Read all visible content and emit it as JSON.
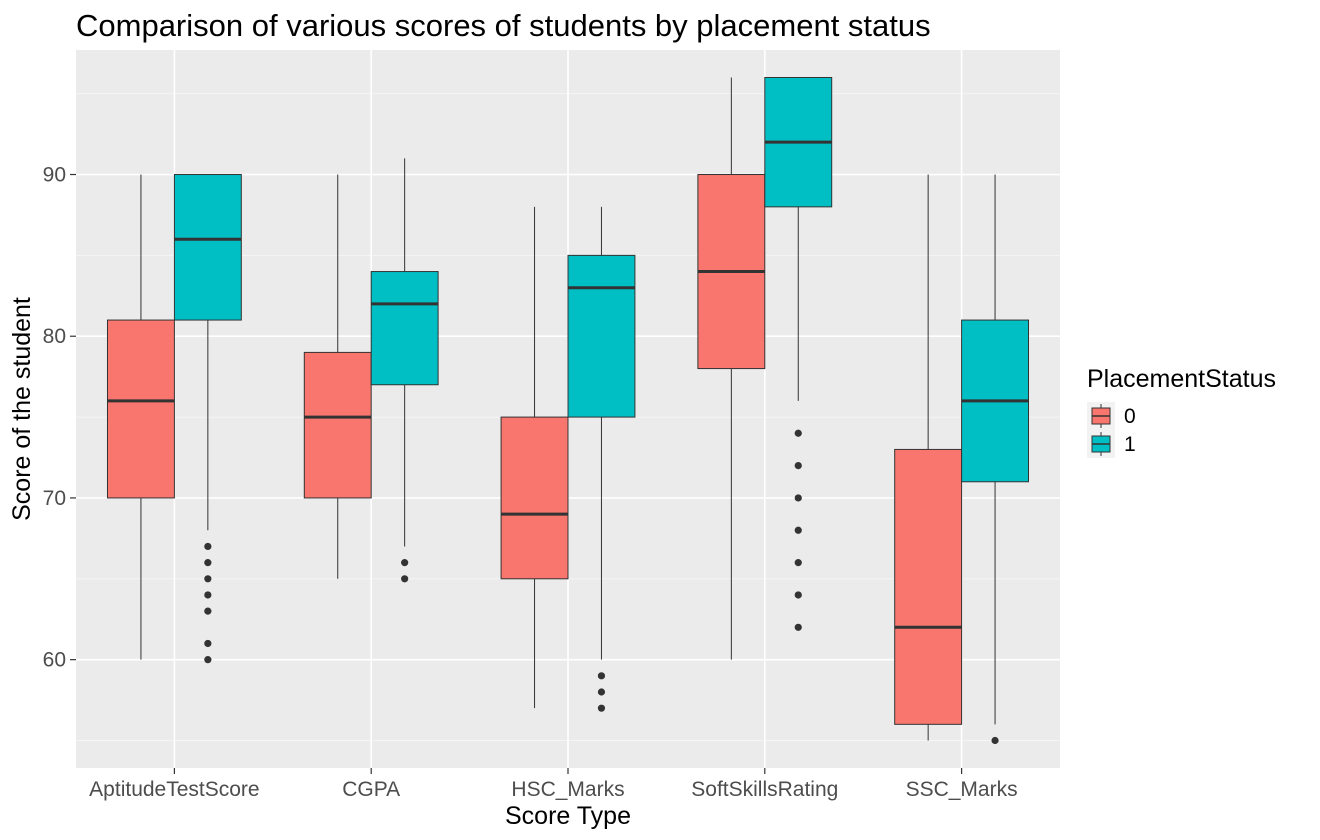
{
  "chart_data": {
    "type": "boxplot",
    "title": "Comparison of various scores of students by placement status",
    "xlabel": "Score Type",
    "ylabel": "Score of the student",
    "ylim": [
      53.3,
      97.7
    ],
    "yticks": [
      60,
      70,
      80,
      90
    ],
    "minor_yticks": [
      55,
      65,
      75,
      85,
      95
    ],
    "grid": true,
    "categories": [
      "AptitudeTestScore",
      "CGPA",
      "HSC_Marks",
      "SoftSkillsRating",
      "SSC_Marks"
    ],
    "legend": {
      "title": "PlacementStatus",
      "position": "right",
      "entries": [
        {
          "label": "0",
          "color": "#F8766D"
        },
        {
          "label": "1",
          "color": "#00BFC4"
        }
      ]
    },
    "series": [
      {
        "group": "0",
        "color": "#F8766D",
        "boxes": [
          {
            "category": "AptitudeTestScore",
            "min": 60,
            "q1": 70,
            "median": 76,
            "q3": 81,
            "max": 90,
            "outliers": []
          },
          {
            "category": "CGPA",
            "min": 65,
            "q1": 70,
            "median": 75,
            "q3": 79,
            "max": 90,
            "outliers": []
          },
          {
            "category": "HSC_Marks",
            "min": 57,
            "q1": 65,
            "median": 69,
            "q3": 75,
            "max": 88,
            "outliers": []
          },
          {
            "category": "SoftSkillsRating",
            "min": 60,
            "q1": 78,
            "median": 84,
            "q3": 90,
            "max": 96,
            "outliers": []
          },
          {
            "category": "SSC_Marks",
            "min": 55,
            "q1": 56,
            "median": 62,
            "q3": 73,
            "max": 90,
            "outliers": []
          }
        ]
      },
      {
        "group": "1",
        "color": "#00BFC4",
        "boxes": [
          {
            "category": "AptitudeTestScore",
            "min": 68,
            "q1": 81,
            "median": 86,
            "q3": 90,
            "max": 90,
            "outliers": [
              60,
              61,
              63,
              64,
              65,
              66,
              67
            ]
          },
          {
            "category": "CGPA",
            "min": 67,
            "q1": 77,
            "median": 82,
            "q3": 84,
            "max": 91,
            "outliers": [
              65,
              66
            ]
          },
          {
            "category": "HSC_Marks",
            "min": 60,
            "q1": 75,
            "median": 83,
            "q3": 85,
            "max": 88,
            "outliers": [
              57,
              58,
              59
            ]
          },
          {
            "category": "SoftSkillsRating",
            "min": 76,
            "q1": 88,
            "median": 92,
            "q3": 96,
            "max": 96,
            "outliers": [
              62,
              64,
              66,
              68,
              70,
              72,
              74
            ]
          },
          {
            "category": "SSC_Marks",
            "min": 56,
            "q1": 71,
            "median": 76,
            "q3": 81,
            "max": 90,
            "outliers": [
              55
            ]
          }
        ]
      }
    ]
  }
}
